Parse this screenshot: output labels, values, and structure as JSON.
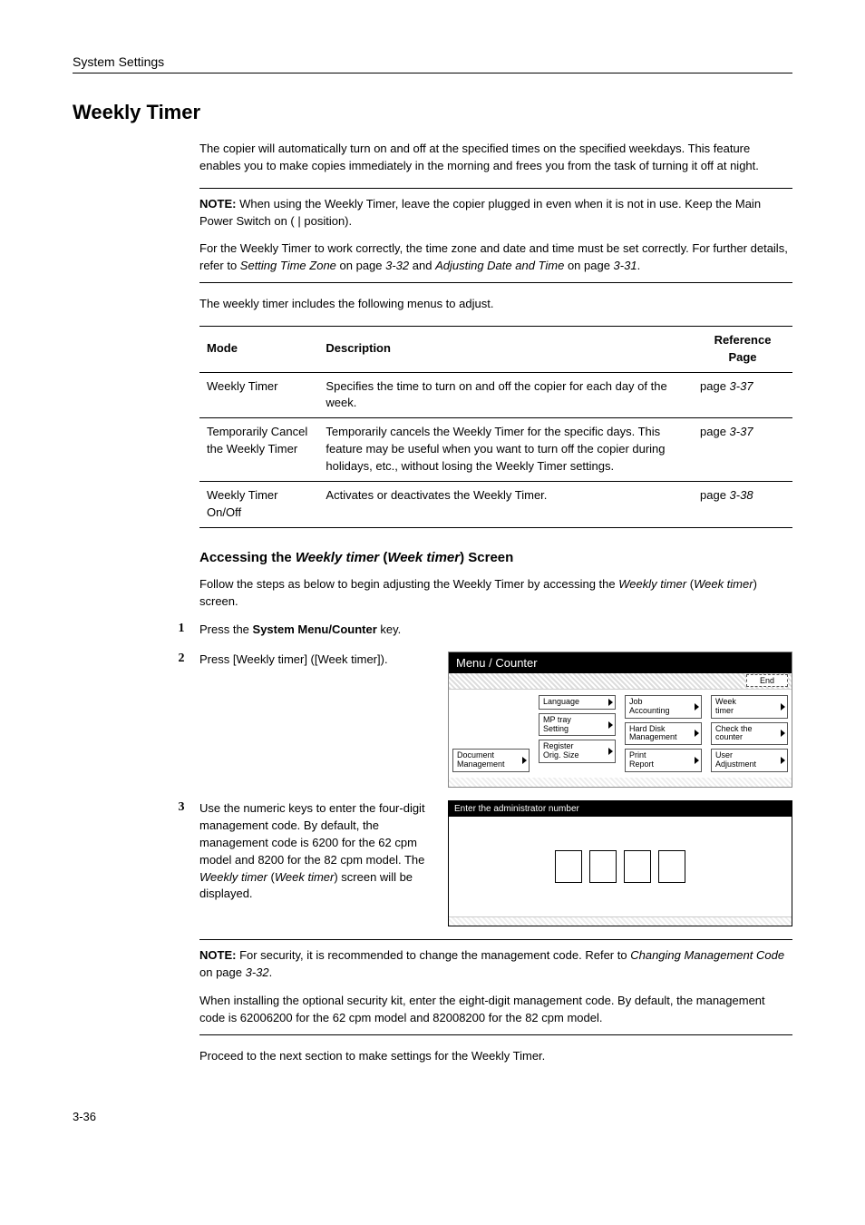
{
  "header": {
    "section": "System Settings"
  },
  "heading": "Weekly Timer",
  "intro": "The copier will automatically turn on and off at the specified times on the specified weekdays. This feature enables you to make copies immediately in the morning and frees you from the task of turning it off at night.",
  "note1": {
    "label": "NOTE:",
    "p1": " When using the Weekly Timer, leave the copier plugged in even when it is not in use. Keep the Main Power Switch on ( | position).",
    "p2a": "For the Weekly Timer to work correctly, the time zone and date and time must be set correctly. For further details, refer to ",
    "p2i1": "Setting Time Zone",
    "p2b": " on page ",
    "p2i2": "3-32",
    "p2c": " and ",
    "p2i3": "Adjusting Date and Time",
    "p2d": " on page ",
    "p2i4": "3-31",
    "p2e": "."
  },
  "table_intro": "The weekly timer includes the following menus to adjust.",
  "table": {
    "headers": {
      "mode": "Mode",
      "desc": "Description",
      "ref": "Reference Page"
    },
    "rows": [
      {
        "mode": "Weekly Timer",
        "desc": "Specifies the time to turn on and off the copier for each day of the week.",
        "ref_a": "page ",
        "ref_b": "3-37"
      },
      {
        "mode": "Temporarily Cancel the Weekly Timer",
        "desc": "Temporarily cancels the Weekly Timer for the specific days. This feature may be useful when you want to turn off the copier during holidays, etc., without losing the Weekly Timer settings.",
        "ref_a": "page ",
        "ref_b": "3-37"
      },
      {
        "mode": "Weekly Timer On/Off",
        "desc": "Activates or deactivates the Weekly Timer.",
        "ref_a": "page ",
        "ref_b": "3-38"
      }
    ]
  },
  "subheading": {
    "a": "Accessing the ",
    "i1": "Weekly timer",
    "b": " (",
    "i2": "Week timer",
    "c": ") Screen"
  },
  "sub_intro": {
    "a": "Follow the steps as below to begin adjusting the Weekly Timer by accessing the ",
    "i1": "Weekly timer",
    "b": " (",
    "i2": "Week timer",
    "c": ") screen."
  },
  "steps": {
    "s1": {
      "num": "1",
      "a": "Press the ",
      "b": "System Menu/Counter",
      "c": " key."
    },
    "s2": {
      "num": "2",
      "text": "Press [Weekly timer] ([Week timer])."
    },
    "s3": {
      "num": "3",
      "a": "Use the numeric keys to enter the four-digit management code. By default, the management code is 6200 for the 62 cpm model and 8200 for the 82 cpm model. The ",
      "i1": "Weekly timer",
      "b": " (",
      "i2": "Week timer",
      "c": ") screen will be displayed."
    }
  },
  "menu_panel": {
    "title": "Menu / Counter",
    "end": "End",
    "col1": [
      "Document\nManagement"
    ],
    "col2": [
      "Language",
      "MP tray\nSetting",
      "Register\nOrig. Size"
    ],
    "col3": [
      "Job\nAccounting",
      "Hard Disk\nManagement",
      "Print\nReport"
    ],
    "col4": [
      "Week\ntimer",
      "Check the\ncounter",
      "User\nAdjustment"
    ]
  },
  "admin_panel": {
    "title": "Enter the administrator number"
  },
  "note2": {
    "label": "NOTE:",
    "p1a": " For security, it is recommended to change the management code. Refer to ",
    "p1i": "Changing Management Code",
    "p1b": " on page ",
    "p1i2": "3-32",
    "p1c": ".",
    "p2": "When installing the optional security kit, enter the eight-digit management code. By default, the management code is 62006200 for the 62 cpm model and 82008200 for the 82 cpm model."
  },
  "outro": "Proceed to the next section to make settings for the Weekly Timer.",
  "page_num": "3-36"
}
